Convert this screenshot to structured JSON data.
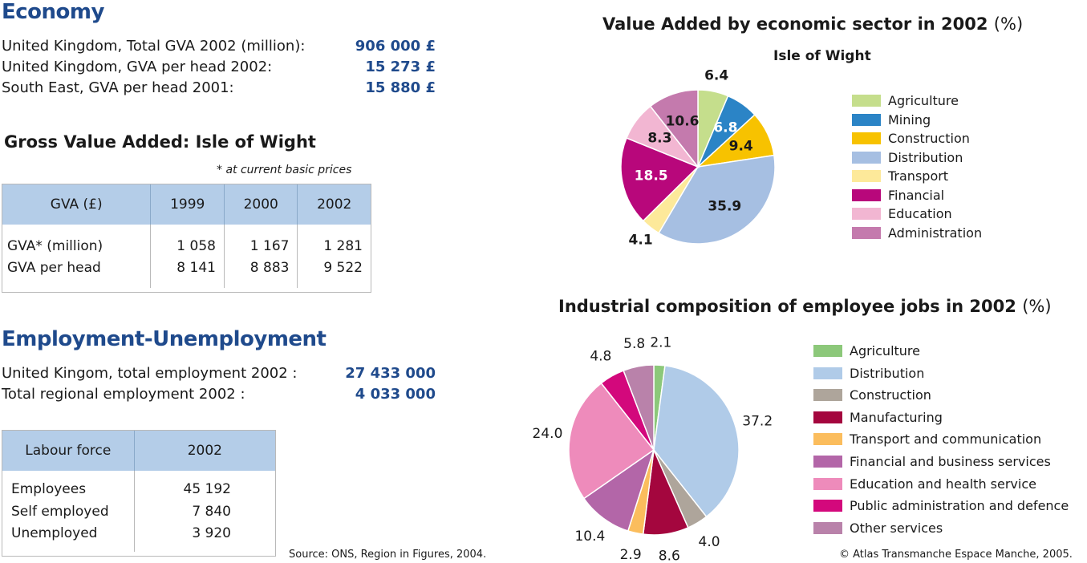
{
  "economy": {
    "heading": "Economy",
    "rows": [
      {
        "label": "United Kingdom, Total GVA 2002 (million):",
        "value": "906 000 £"
      },
      {
        "label": "United Kingdom, GVA per head 2002:",
        "value": "15 273 £"
      },
      {
        "label": "South East, GVA per head 2001:",
        "value": "15 880 £"
      }
    ]
  },
  "gva_table": {
    "heading": "Gross Value Added: Isle of Wight",
    "note": "* at current basic prices",
    "headers": [
      "GVA (£)",
      "1999",
      "2000",
      "2002"
    ],
    "rows": [
      [
        "GVA* (million)",
        "1 058",
        "1 167",
        "1 281"
      ],
      [
        "GVA per head",
        "8 141",
        "8 883",
        "9 522"
      ]
    ]
  },
  "employment": {
    "heading": "Employment-Unemployment",
    "rows": [
      {
        "label": "United Kingom, total employment 2002 :",
        "value": "27 433 000"
      },
      {
        "label": "Total regional employment 2002 :",
        "value": "4 033 000"
      }
    ]
  },
  "labour_table": {
    "headers": [
      "Labour force",
      "2002"
    ],
    "rows": [
      [
        "Employees",
        "45 192"
      ],
      [
        "Self employed",
        "7 840"
      ],
      [
        "Unemployed",
        "3 920"
      ]
    ]
  },
  "source": "Source: ONS, Region in Figures, 2004.",
  "copyright": "© Atlas Transmanche Espace Manche, 2005.",
  "chart_data": [
    {
      "type": "pie",
      "title": "Value Added by economic sector in 2002",
      "title_unit": "(%)",
      "subtitle": "Isle of Wight",
      "legend_position": "right",
      "slices": [
        {
          "label": "Agriculture",
          "value": 6.4,
          "color": "#c5de8c"
        },
        {
          "label": "Mining",
          "value": 6.8,
          "color": "#2b84c6"
        },
        {
          "label": "Construction",
          "value": 9.4,
          "color": "#f7c200"
        },
        {
          "label": "Distribution",
          "value": 35.9,
          "color": "#a6bfe2"
        },
        {
          "label": "Transport",
          "value": 4.1,
          "color": "#fde99a"
        },
        {
          "label": "Financial",
          "value": 18.5,
          "color": "#b8077b"
        },
        {
          "label": "Education",
          "value": 8.3,
          "color": "#f2b6d2"
        },
        {
          "label": "Administration",
          "value": 10.6,
          "color": "#c47aad"
        }
      ]
    },
    {
      "type": "pie",
      "title": "Industrial composition of employee jobs in 2002",
      "title_unit": "(%)",
      "legend_position": "right",
      "slices": [
        {
          "label": "Agriculture",
          "value": 2.1,
          "color": "#8cc87a"
        },
        {
          "label": "Distribution",
          "value": 37.2,
          "color": "#b0cbe8"
        },
        {
          "label": "Construction",
          "value": 4.0,
          "color": "#aea59b"
        },
        {
          "label": "Manufacturing",
          "value": 8.6,
          "color": "#a4063e"
        },
        {
          "label": "Transport and communication",
          "value": 2.9,
          "color": "#fbbd5d"
        },
        {
          "label": "Financial and business services",
          "value": 10.4,
          "color": "#b366a8"
        },
        {
          "label": "Education and health service",
          "value": 24.0,
          "color": "#ee8bbb"
        },
        {
          "label": "Public administration and defence",
          "value": 4.8,
          "color": "#d3087c"
        },
        {
          "label": "Other services",
          "value": 5.8,
          "color": "#b982aa"
        }
      ]
    }
  ]
}
